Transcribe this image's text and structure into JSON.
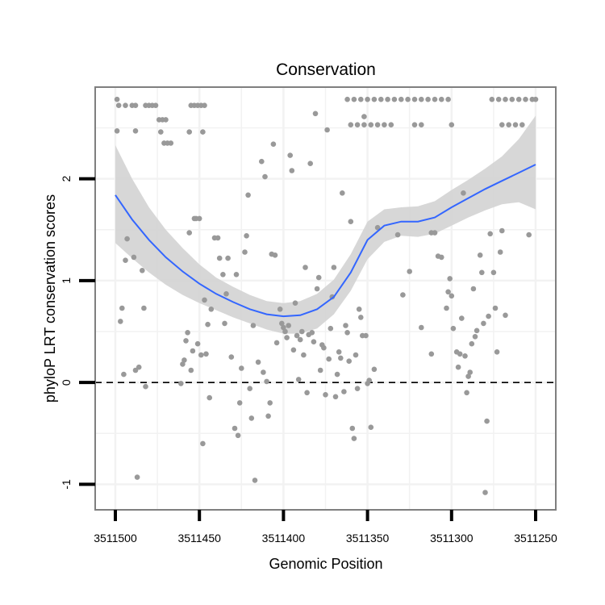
{
  "chart_data": {
    "type": "scatter",
    "title": "Conservation",
    "xlabel": "Genomic Position",
    "ylabel": "phyloP LRT conservation scores",
    "x_reversed": true,
    "xlim": [
      3511250,
      3511500
    ],
    "ylim": [
      -1.25,
      2.9
    ],
    "xticks": [
      3511500,
      3511450,
      3511400,
      3511350,
      3511300,
      3511250
    ],
    "xtick_labels": [
      "3511500",
      "3511450",
      "3511400",
      "3511350",
      "3511300",
      "3511250"
    ],
    "yticks": [
      -1,
      0,
      1,
      2
    ],
    "ytick_labels": [
      "-1",
      "0",
      "1",
      "2"
    ],
    "grid": true,
    "reference_line": {
      "y": 0,
      "style": "dashed"
    },
    "colors": {
      "points": "#999999",
      "smooth": "#3366FF",
      "band": "#D3D3D3",
      "frame": "#7f7f7f",
      "grid": "#f2f2f2"
    },
    "points": [
      [
        3511499,
        2.78
      ],
      [
        3511498,
        2.72
      ],
      [
        3511494,
        2.72
      ],
      [
        3511490,
        2.72
      ],
      [
        3511488,
        2.72
      ],
      [
        3511482,
        2.72
      ],
      [
        3511480,
        2.72
      ],
      [
        3511478,
        2.72
      ],
      [
        3511476,
        2.72
      ],
      [
        3511474,
        2.58
      ],
      [
        3511472,
        2.58
      ],
      [
        3511470,
        2.58
      ],
      [
        3511473,
        2.46
      ],
      [
        3511471,
        2.35
      ],
      [
        3511469,
        2.35
      ],
      [
        3511467,
        2.35
      ],
      [
        3511455,
        2.72
      ],
      [
        3511453,
        2.72
      ],
      [
        3511451,
        2.72
      ],
      [
        3511449,
        2.72
      ],
      [
        3511447,
        2.72
      ],
      [
        3511456,
        2.46
      ],
      [
        3511448,
        2.46
      ],
      [
        3511499,
        2.47
      ],
      [
        3511488,
        2.47
      ],
      [
        3511362,
        2.78
      ],
      [
        3511358,
        2.78
      ],
      [
        3511354,
        2.78
      ],
      [
        3511350,
        2.78
      ],
      [
        3511346,
        2.78
      ],
      [
        3511342,
        2.78
      ],
      [
        3511338,
        2.78
      ],
      [
        3511334,
        2.78
      ],
      [
        3511330,
        2.78
      ],
      [
        3511326,
        2.78
      ],
      [
        3511322,
        2.78
      ],
      [
        3511318,
        2.78
      ],
      [
        3511314,
        2.78
      ],
      [
        3511310,
        2.78
      ],
      [
        3511306,
        2.78
      ],
      [
        3511302,
        2.78
      ],
      [
        3511276,
        2.78
      ],
      [
        3511272,
        2.78
      ],
      [
        3511268,
        2.78
      ],
      [
        3511264,
        2.78
      ],
      [
        3511260,
        2.78
      ],
      [
        3511256,
        2.78
      ],
      [
        3511252,
        2.78
      ],
      [
        3511250,
        2.78
      ],
      [
        3511360,
        2.53
      ],
      [
        3511356,
        2.53
      ],
      [
        3511352,
        2.53
      ],
      [
        3511348,
        2.53
      ],
      [
        3511344,
        2.53
      ],
      [
        3511340,
        2.53
      ],
      [
        3511336,
        2.53
      ],
      [
        3511322,
        2.53
      ],
      [
        3511318,
        2.53
      ],
      [
        3511300,
        2.53
      ],
      [
        3511270,
        2.53
      ],
      [
        3511266,
        2.53
      ],
      [
        3511262,
        2.53
      ],
      [
        3511258,
        2.53
      ],
      [
        3511497,
        0.6
      ],
      [
        3511496,
        0.73
      ],
      [
        3511495,
        0.08
      ],
      [
        3511494,
        1.2
      ],
      [
        3511493,
        1.41
      ],
      [
        3511489,
        1.23
      ],
      [
        3511488,
        0.12
      ],
      [
        3511487,
        -0.93
      ],
      [
        3511486,
        0.15
      ],
      [
        3511484,
        1.1
      ],
      [
        3511483,
        0.73
      ],
      [
        3511482,
        -0.04
      ],
      [
        3511461,
        -0.01
      ],
      [
        3511460,
        0.18
      ],
      [
        3511459,
        0.22
      ],
      [
        3511458,
        0.41
      ],
      [
        3511457,
        0.49
      ],
      [
        3511456,
        1.47
      ],
      [
        3511455,
        0.12
      ],
      [
        3511454,
        0.31
      ],
      [
        3511453,
        1.61
      ],
      [
        3511452,
        1.61
      ],
      [
        3511451,
        0.38
      ],
      [
        3511450,
        1.61
      ],
      [
        3511449,
        0.27
      ],
      [
        3511448,
        -0.6
      ],
      [
        3511447,
        0.81
      ],
      [
        3511446,
        0.28
      ],
      [
        3511445,
        0.57
      ],
      [
        3511444,
        -0.15
      ],
      [
        3511443,
        0.72
      ],
      [
        3511441,
        1.42
      ],
      [
        3511439,
        1.42
      ],
      [
        3511438,
        1.22
      ],
      [
        3511436,
        1.06
      ],
      [
        3511435,
        0.58
      ],
      [
        3511434,
        0.87
      ],
      [
        3511433,
        1.22
      ],
      [
        3511431,
        0.25
      ],
      [
        3511429,
        -0.45
      ],
      [
        3511428,
        1.06
      ],
      [
        3511427,
        -0.52
      ],
      [
        3511426,
        -0.2
      ],
      [
        3511425,
        0.14
      ],
      [
        3511423,
        1.28
      ],
      [
        3511422,
        1.44
      ],
      [
        3511421,
        1.84
      ],
      [
        3511420,
        -0.06
      ],
      [
        3511419,
        -0.35
      ],
      [
        3511418,
        0.56
      ],
      [
        3511417,
        -0.96
      ],
      [
        3511415,
        0.2
      ],
      [
        3511413,
        2.17
      ],
      [
        3511412,
        0.1
      ],
      [
        3511411,
        2.02
      ],
      [
        3511410,
        0.01
      ],
      [
        3511409,
        -0.33
      ],
      [
        3511408,
        -0.2
      ],
      [
        3511407,
        1.26
      ],
      [
        3511406,
        2.34
      ],
      [
        3511405,
        1.25
      ],
      [
        3511404,
        0.39
      ],
      [
        3511402,
        0.72
      ],
      [
        3511401,
        0.58
      ],
      [
        3511400,
        0.54
      ],
      [
        3511399,
        0.5
      ],
      [
        3511398,
        0.44
      ],
      [
        3511397,
        0.56
      ],
      [
        3511396,
        2.23
      ],
      [
        3511395,
        2.08
      ],
      [
        3511394,
        0.32
      ],
      [
        3511393,
        0.78
      ],
      [
        3511392,
        0.46
      ],
      [
        3511391,
        0.03
      ],
      [
        3511390,
        0.42
      ],
      [
        3511389,
        0.5
      ],
      [
        3511388,
        0.27
      ],
      [
        3511387,
        1.13
      ],
      [
        3511386,
        -0.1
      ],
      [
        3511385,
        0.47
      ],
      [
        3511384,
        2.15
      ],
      [
        3511383,
        0.49
      ],
      [
        3511382,
        0.4
      ],
      [
        3511381,
        2.64
      ],
      [
        3511380,
        0.92
      ],
      [
        3511379,
        1.03
      ],
      [
        3511378,
        0.12
      ],
      [
        3511377,
        0.37
      ],
      [
        3511376,
        0.34
      ],
      [
        3511375,
        -0.12
      ],
      [
        3511374,
        2.48
      ],
      [
        3511373,
        0.23
      ],
      [
        3511372,
        0.53
      ],
      [
        3511371,
        0.84
      ],
      [
        3511370,
        1.13
      ],
      [
        3511369,
        -0.14
      ],
      [
        3511368,
        0.08
      ],
      [
        3511367,
        0.3
      ],
      [
        3511366,
        0.24
      ],
      [
        3511365,
        1.86
      ],
      [
        3511364,
        -0.09
      ],
      [
        3511363,
        0.56
      ],
      [
        3511362,
        0.49
      ],
      [
        3511361,
        0.21
      ],
      [
        3511360,
        1.58
      ],
      [
        3511359,
        -0.45
      ],
      [
        3511358,
        -0.55
      ],
      [
        3511357,
        0.27
      ],
      [
        3511356,
        -0.06
      ],
      [
        3511355,
        0.72
      ],
      [
        3511354,
        0.64
      ],
      [
        3511353,
        0.46
      ],
      [
        3511352,
        2.61
      ],
      [
        3511351,
        0.46
      ],
      [
        3511350,
        -0.01
      ],
      [
        3511349,
        0.02
      ],
      [
        3511348,
        -0.44
      ],
      [
        3511346,
        0.13
      ],
      [
        3511344,
        1.52
      ],
      [
        3511332,
        1.45
      ],
      [
        3511312,
        1.47
      ],
      [
        3511310,
        1.47
      ],
      [
        3511308,
        1.24
      ],
      [
        3511306,
        1.23
      ],
      [
        3511303,
        0.73
      ],
      [
        3511302,
        0.89
      ],
      [
        3511301,
        1.02
      ],
      [
        3511300,
        0.85
      ],
      [
        3511299,
        0.53
      ],
      [
        3511297,
        0.3
      ],
      [
        3511296,
        0.15
      ],
      [
        3511295,
        0.28
      ],
      [
        3511294,
        0.63
      ],
      [
        3511293,
        1.86
      ],
      [
        3511292,
        0.26
      ],
      [
        3511291,
        -0.1
      ],
      [
        3511290,
        0.06
      ],
      [
        3511289,
        0.1
      ],
      [
        3511288,
        0.38
      ],
      [
        3511287,
        0.92
      ],
      [
        3511286,
        0.45
      ],
      [
        3511285,
        0.51
      ],
      [
        3511283,
        1.25
      ],
      [
        3511282,
        1.08
      ],
      [
        3511281,
        0.58
      ],
      [
        3511280,
        -1.08
      ],
      [
        3511279,
        -0.38
      ],
      [
        3511278,
        0.65
      ],
      [
        3511277,
        1.46
      ],
      [
        3511275,
        1.08
      ],
      [
        3511274,
        0.73
      ],
      [
        3511273,
        0.3
      ],
      [
        3511271,
        1.28
      ],
      [
        3511270,
        1.49
      ],
      [
        3511268,
        0.66
      ],
      [
        3511254,
        1.45
      ],
      [
        3511312,
        0.28
      ],
      [
        3511318,
        0.54
      ],
      [
        3511325,
        1.09
      ],
      [
        3511329,
        0.86
      ]
    ],
    "smooth": [
      [
        3511500,
        1.84
      ],
      [
        3511490,
        1.6
      ],
      [
        3511480,
        1.4
      ],
      [
        3511470,
        1.23
      ],
      [
        3511460,
        1.09
      ],
      [
        3511450,
        0.97
      ],
      [
        3511440,
        0.87
      ],
      [
        3511430,
        0.79
      ],
      [
        3511420,
        0.72
      ],
      [
        3511410,
        0.67
      ],
      [
        3511400,
        0.65
      ],
      [
        3511390,
        0.66
      ],
      [
        3511380,
        0.72
      ],
      [
        3511370,
        0.84
      ],
      [
        3511360,
        1.08
      ],
      [
        3511350,
        1.4
      ],
      [
        3511340,
        1.54
      ],
      [
        3511330,
        1.58
      ],
      [
        3511320,
        1.58
      ],
      [
        3511310,
        1.62
      ],
      [
        3511300,
        1.72
      ],
      [
        3511290,
        1.81
      ],
      [
        3511280,
        1.9
      ],
      [
        3511270,
        1.98
      ],
      [
        3511260,
        2.06
      ],
      [
        3511250,
        2.14
      ]
    ],
    "band": [
      [
        3511500,
        2.33,
        1.37
      ],
      [
        3511490,
        2.0,
        1.22
      ],
      [
        3511480,
        1.72,
        1.08
      ],
      [
        3511470,
        1.5,
        0.96
      ],
      [
        3511460,
        1.32,
        0.86
      ],
      [
        3511450,
        1.16,
        0.78
      ],
      [
        3511440,
        1.03,
        0.71
      ],
      [
        3511430,
        0.94,
        0.64
      ],
      [
        3511420,
        0.86,
        0.58
      ],
      [
        3511410,
        0.8,
        0.52
      ],
      [
        3511400,
        0.78,
        0.48
      ],
      [
        3511390,
        0.8,
        0.48
      ],
      [
        3511380,
        0.87,
        0.53
      ],
      [
        3511370,
        1.01,
        0.67
      ],
      [
        3511360,
        1.26,
        0.9
      ],
      [
        3511350,
        1.58,
        1.21
      ],
      [
        3511340,
        1.7,
        1.38
      ],
      [
        3511330,
        1.72,
        1.44
      ],
      [
        3511320,
        1.73,
        1.43
      ],
      [
        3511310,
        1.78,
        1.46
      ],
      [
        3511300,
        1.89,
        1.54
      ],
      [
        3511290,
        1.99,
        1.62
      ],
      [
        3511280,
        2.1,
        1.69
      ],
      [
        3511270,
        2.22,
        1.75
      ],
      [
        3511260,
        2.39,
        1.77
      ],
      [
        3511250,
        2.62,
        1.7
      ]
    ]
  }
}
